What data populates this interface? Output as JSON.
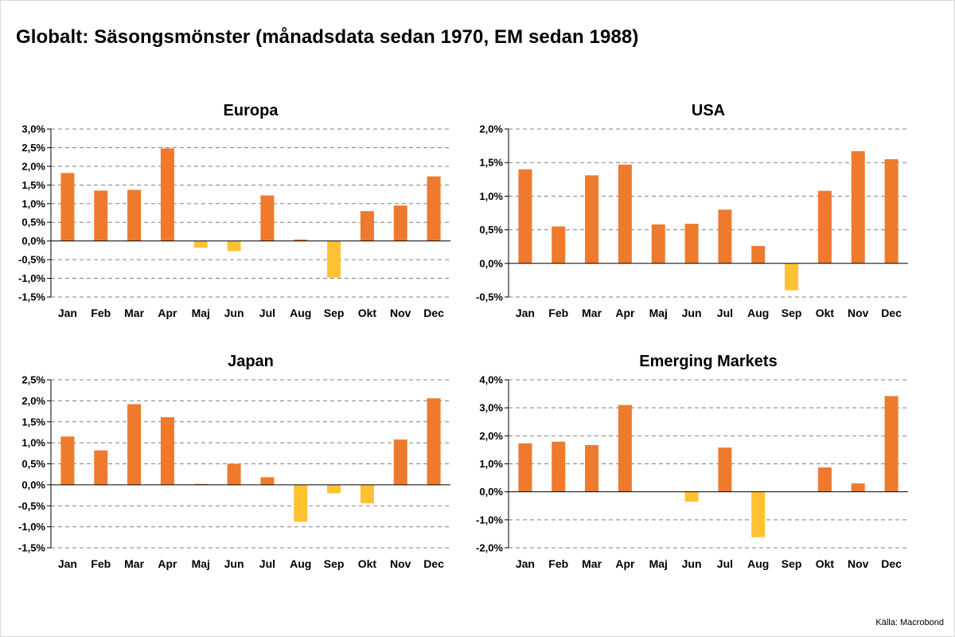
{
  "title": "Globalt: Säsongsmönster (månadsdata sedan 1970, EM sedan 1988)",
  "source": "Källa: Macrobond",
  "colors": {
    "positive": "#EE7A2E",
    "negative": "#FFC233",
    "grid": "#808080",
    "axis": "#000000"
  },
  "chart_data": [
    {
      "type": "bar",
      "title": "Europa",
      "categories": [
        "Jan",
        "Feb",
        "Mar",
        "Apr",
        "Maj",
        "Jun",
        "Jul",
        "Aug",
        "Sep",
        "Okt",
        "Nov",
        "Dec"
      ],
      "values": [
        1.82,
        1.35,
        1.37,
        2.48,
        -0.18,
        -0.27,
        1.22,
        0.04,
        -0.98,
        0.8,
        0.95,
        1.73
      ],
      "ylim": [
        -1.5,
        3.0
      ],
      "yticks": [
        3.0,
        2.5,
        2.0,
        1.5,
        1.0,
        0.5,
        0.0,
        -0.5,
        -1.0,
        -1.5
      ],
      "ytick_labels": [
        "3,0%",
        "2,5%",
        "2,0%",
        "1,5%",
        "1,0%",
        "0,5%",
        "0,0%",
        "-0,5%",
        "-1,0%",
        "-1,5%"
      ],
      "grid": true
    },
    {
      "type": "bar",
      "title": "USA",
      "categories": [
        "Jan",
        "Feb",
        "Mar",
        "Apr",
        "Maj",
        "Jun",
        "Jul",
        "Aug",
        "Sep",
        "Okt",
        "Nov",
        "Dec"
      ],
      "values": [
        1.4,
        0.55,
        1.31,
        1.47,
        0.58,
        0.59,
        0.8,
        0.26,
        -0.4,
        1.08,
        1.67,
        1.55
      ],
      "ylim": [
        -0.5,
        2.0
      ],
      "yticks": [
        2.0,
        1.5,
        1.0,
        0.5,
        0.0,
        -0.5
      ],
      "ytick_labels": [
        "2,0%",
        "1,5%",
        "1,0%",
        "0,5%",
        "0,0%",
        "-0,5%"
      ],
      "grid": true
    },
    {
      "type": "bar",
      "title": "Japan",
      "categories": [
        "Jan",
        "Feb",
        "Mar",
        "Apr",
        "Maj",
        "Jun",
        "Jul",
        "Aug",
        "Sep",
        "Okt",
        "Nov",
        "Dec"
      ],
      "values": [
        1.15,
        0.82,
        1.92,
        1.61,
        0.02,
        0.5,
        0.18,
        -0.88,
        -0.2,
        -0.44,
        1.08,
        2.06
      ],
      "ylim": [
        -1.5,
        2.5
      ],
      "yticks": [
        2.5,
        2.0,
        1.5,
        1.0,
        0.5,
        0.0,
        -0.5,
        -1.0,
        -1.5
      ],
      "ytick_labels": [
        "2,5%",
        "2,0%",
        "1,5%",
        "1,0%",
        "0,5%",
        "0,0%",
        "-0,5%",
        "-1,0%",
        "-1,5%"
      ],
      "grid": true
    },
    {
      "type": "bar",
      "title": "Emerging Markets",
      "categories": [
        "Jan",
        "Feb",
        "Mar",
        "Apr",
        "Maj",
        "Jun",
        "Jul",
        "Aug",
        "Sep",
        "Okt",
        "Nov",
        "Dec"
      ],
      "values": [
        1.73,
        1.79,
        1.67,
        3.1,
        0.0,
        -0.35,
        1.58,
        -1.62,
        0.0,
        0.87,
        0.3,
        3.42
      ],
      "ylim": [
        -2.0,
        4.0
      ],
      "yticks": [
        4.0,
        3.0,
        2.0,
        1.0,
        0.0,
        -1.0,
        -2.0
      ],
      "ytick_labels": [
        "4,0%",
        "3,0%",
        "2,0%",
        "1,0%",
        "0,0%",
        "-1,0%",
        "-2,0%"
      ],
      "grid": true
    }
  ]
}
